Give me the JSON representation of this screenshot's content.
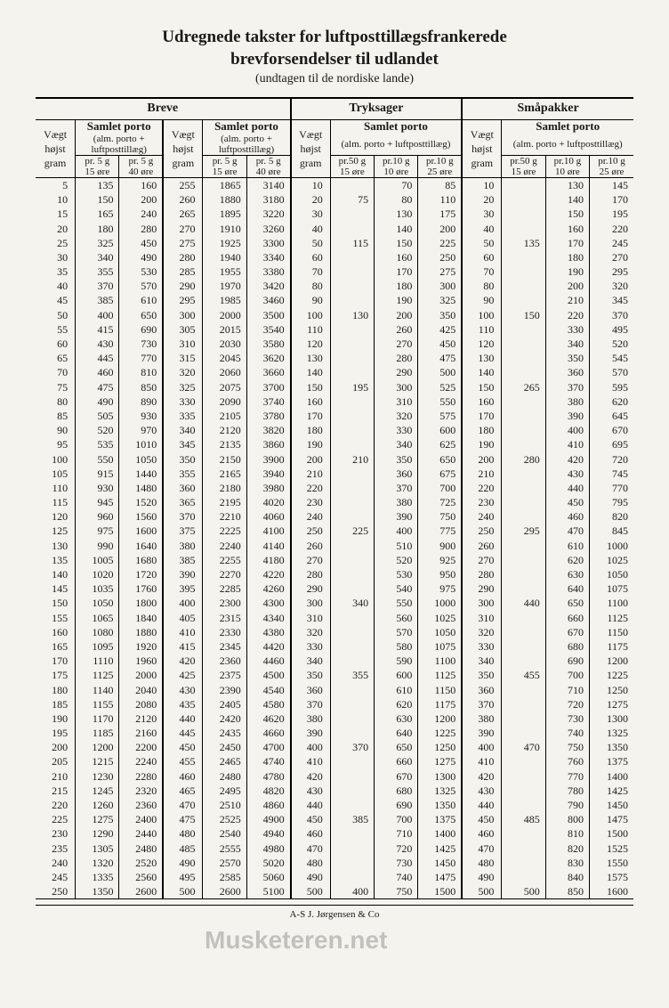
{
  "title_line1": "Udregnede takster for luftposttillægsfrankerede",
  "title_line2": "brevforsendelser til udlandet",
  "subtitle": "(undtagen til de nordiske lande)",
  "sections": {
    "breve": "Breve",
    "tryksager": "Tryksager",
    "smapakker": "Småpakker"
  },
  "col_weight": "Vægt højst gram",
  "samlet_porto": "Samlet porto",
  "paren": "(alm. porto + luftposttillæg)",
  "pr5_15": "pr. 5 g 15 øre",
  "pr5_40": "pr. 5 g 40 øre",
  "pr50_15": "pr. 50 g 15 øre",
  "pr10_10": "pr. 10 g 10 øre",
  "pr10_25": "pr. 10 g 25 øre",
  "footer": "A-S J. Jørgensen & Co",
  "watermark": "Musketeren.net",
  "rows": [
    {
      "b1": [
        5,
        135,
        160
      ],
      "b2": [
        255,
        1865,
        3140
      ],
      "t": [
        10,
        "",
        70,
        85
      ],
      "s": [
        10,
        "",
        130,
        145
      ]
    },
    {
      "b1": [
        10,
        150,
        200
      ],
      "b2": [
        260,
        1880,
        3180
      ],
      "t": [
        20,
        75,
        80,
        110
      ],
      "s": [
        20,
        "",
        140,
        170
      ]
    },
    {
      "b1": [
        15,
        165,
        240
      ],
      "b2": [
        265,
        1895,
        3220
      ],
      "t": [
        30,
        "",
        130,
        175
      ],
      "s": [
        30,
        "",
        150,
        195
      ]
    },
    {
      "b1": [
        20,
        180,
        280
      ],
      "b2": [
        270,
        1910,
        3260
      ],
      "t": [
        40,
        "",
        140,
        200
      ],
      "s": [
        40,
        "",
        160,
        220
      ]
    },
    {
      "b1": [
        25,
        325,
        450
      ],
      "b2": [
        275,
        1925,
        3300
      ],
      "t": [
        50,
        115,
        150,
        225
      ],
      "s": [
        50,
        135,
        170,
        245
      ]
    },
    {
      "b1": [
        30,
        340,
        490
      ],
      "b2": [
        280,
        1940,
        3340
      ],
      "t": [
        60,
        "",
        160,
        250
      ],
      "s": [
        60,
        "",
        180,
        270
      ]
    },
    {
      "b1": [
        35,
        355,
        530
      ],
      "b2": [
        285,
        1955,
        3380
      ],
      "t": [
        70,
        "",
        170,
        275
      ],
      "s": [
        70,
        "",
        190,
        295
      ]
    },
    {
      "b1": [
        40,
        370,
        570
      ],
      "b2": [
        290,
        1970,
        3420
      ],
      "t": [
        80,
        "",
        180,
        300
      ],
      "s": [
        80,
        "",
        200,
        320
      ]
    },
    {
      "b1": [
        45,
        385,
        610
      ],
      "b2": [
        295,
        1985,
        3460
      ],
      "t": [
        90,
        "",
        190,
        325
      ],
      "s": [
        90,
        "",
        210,
        345
      ]
    },
    {
      "b1": [
        50,
        400,
        650
      ],
      "b2": [
        300,
        2000,
        3500
      ],
      "t": [
        100,
        130,
        200,
        350
      ],
      "s": [
        100,
        150,
        220,
        370
      ]
    },
    {
      "b1": [
        55,
        415,
        690
      ],
      "b2": [
        305,
        2015,
        3540
      ],
      "t": [
        110,
        "",
        260,
        425
      ],
      "s": [
        110,
        "",
        330,
        495
      ]
    },
    {
      "b1": [
        60,
        430,
        730
      ],
      "b2": [
        310,
        2030,
        3580
      ],
      "t": [
        120,
        "",
        270,
        450
      ],
      "s": [
        120,
        "",
        340,
        520
      ]
    },
    {
      "b1": [
        65,
        445,
        770
      ],
      "b2": [
        315,
        2045,
        3620
      ],
      "t": [
        130,
        "",
        280,
        475
      ],
      "s": [
        130,
        "",
        350,
        545
      ]
    },
    {
      "b1": [
        70,
        460,
        810
      ],
      "b2": [
        320,
        2060,
        3660
      ],
      "t": [
        140,
        "",
        290,
        500
      ],
      "s": [
        140,
        "",
        360,
        570
      ]
    },
    {
      "b1": [
        75,
        475,
        850
      ],
      "b2": [
        325,
        2075,
        3700
      ],
      "t": [
        150,
        195,
        300,
        525
      ],
      "s": [
        150,
        265,
        370,
        595
      ]
    },
    {
      "b1": [
        80,
        490,
        890
      ],
      "b2": [
        330,
        2090,
        3740
      ],
      "t": [
        160,
        "",
        310,
        550
      ],
      "s": [
        160,
        "",
        380,
        620
      ]
    },
    {
      "b1": [
        85,
        505,
        930
      ],
      "b2": [
        335,
        2105,
        3780
      ],
      "t": [
        170,
        "",
        320,
        575
      ],
      "s": [
        170,
        "",
        390,
        645
      ]
    },
    {
      "b1": [
        90,
        520,
        970
      ],
      "b2": [
        340,
        2120,
        3820
      ],
      "t": [
        180,
        "",
        330,
        600
      ],
      "s": [
        180,
        "",
        400,
        670
      ]
    },
    {
      "b1": [
        95,
        535,
        1010
      ],
      "b2": [
        345,
        2135,
        3860
      ],
      "t": [
        190,
        "",
        340,
        625
      ],
      "s": [
        190,
        "",
        410,
        695
      ]
    },
    {
      "b1": [
        100,
        550,
        1050
      ],
      "b2": [
        350,
        2150,
        3900
      ],
      "t": [
        200,
        210,
        350,
        650
      ],
      "s": [
        200,
        280,
        420,
        720
      ]
    },
    {
      "b1": [
        105,
        915,
        1440
      ],
      "b2": [
        355,
        2165,
        3940
      ],
      "t": [
        210,
        "",
        360,
        675
      ],
      "s": [
        210,
        "",
        430,
        745
      ]
    },
    {
      "b1": [
        110,
        930,
        1480
      ],
      "b2": [
        360,
        2180,
        3980
      ],
      "t": [
        220,
        "",
        370,
        700
      ],
      "s": [
        220,
        "",
        440,
        770
      ]
    },
    {
      "b1": [
        115,
        945,
        1520
      ],
      "b2": [
        365,
        2195,
        4020
      ],
      "t": [
        230,
        "",
        380,
        725
      ],
      "s": [
        230,
        "",
        450,
        795
      ]
    },
    {
      "b1": [
        120,
        960,
        1560
      ],
      "b2": [
        370,
        2210,
        4060
      ],
      "t": [
        240,
        "",
        390,
        750
      ],
      "s": [
        240,
        "",
        460,
        820
      ]
    },
    {
      "b1": [
        125,
        975,
        1600
      ],
      "b2": [
        375,
        2225,
        4100
      ],
      "t": [
        250,
        225,
        400,
        775
      ],
      "s": [
        250,
        295,
        470,
        845
      ]
    },
    {
      "b1": [
        130,
        990,
        1640
      ],
      "b2": [
        380,
        2240,
        4140
      ],
      "t": [
        260,
        "",
        510,
        900
      ],
      "s": [
        260,
        "",
        610,
        1000
      ]
    },
    {
      "b1": [
        135,
        1005,
        1680
      ],
      "b2": [
        385,
        2255,
        4180
      ],
      "t": [
        270,
        "",
        520,
        925
      ],
      "s": [
        270,
        "",
        620,
        1025
      ]
    },
    {
      "b1": [
        140,
        1020,
        1720
      ],
      "b2": [
        390,
        2270,
        4220
      ],
      "t": [
        280,
        "",
        530,
        950
      ],
      "s": [
        280,
        "",
        630,
        1050
      ]
    },
    {
      "b1": [
        145,
        1035,
        1760
      ],
      "b2": [
        395,
        2285,
        4260
      ],
      "t": [
        290,
        "",
        540,
        975
      ],
      "s": [
        290,
        "",
        640,
        1075
      ]
    },
    {
      "b1": [
        150,
        1050,
        1800
      ],
      "b2": [
        400,
        2300,
        4300
      ],
      "t": [
        300,
        340,
        550,
        1000
      ],
      "s": [
        300,
        440,
        650,
        1100
      ]
    },
    {
      "b1": [
        155,
        1065,
        1840
      ],
      "b2": [
        405,
        2315,
        4340
      ],
      "t": [
        310,
        "",
        560,
        1025
      ],
      "s": [
        310,
        "",
        660,
        1125
      ]
    },
    {
      "b1": [
        160,
        1080,
        1880
      ],
      "b2": [
        410,
        2330,
        4380
      ],
      "t": [
        320,
        "",
        570,
        1050
      ],
      "s": [
        320,
        "",
        670,
        1150
      ]
    },
    {
      "b1": [
        165,
        1095,
        1920
      ],
      "b2": [
        415,
        2345,
        4420
      ],
      "t": [
        330,
        "",
        580,
        1075
      ],
      "s": [
        330,
        "",
        680,
        1175
      ]
    },
    {
      "b1": [
        170,
        1110,
        1960
      ],
      "b2": [
        420,
        2360,
        4460
      ],
      "t": [
        340,
        "",
        590,
        1100
      ],
      "s": [
        340,
        "",
        690,
        1200
      ]
    },
    {
      "b1": [
        175,
        1125,
        2000
      ],
      "b2": [
        425,
        2375,
        4500
      ],
      "t": [
        350,
        355,
        600,
        1125
      ],
      "s": [
        350,
        455,
        700,
        1225
      ]
    },
    {
      "b1": [
        180,
        1140,
        2040
      ],
      "b2": [
        430,
        2390,
        4540
      ],
      "t": [
        360,
        "",
        610,
        1150
      ],
      "s": [
        360,
        "",
        710,
        1250
      ]
    },
    {
      "b1": [
        185,
        1155,
        2080
      ],
      "b2": [
        435,
        2405,
        4580
      ],
      "t": [
        370,
        "",
        620,
        1175
      ],
      "s": [
        370,
        "",
        720,
        1275
      ]
    },
    {
      "b1": [
        190,
        1170,
        2120
      ],
      "b2": [
        440,
        2420,
        4620
      ],
      "t": [
        380,
        "",
        630,
        1200
      ],
      "s": [
        380,
        "",
        730,
        1300
      ]
    },
    {
      "b1": [
        195,
        1185,
        2160
      ],
      "b2": [
        445,
        2435,
        4660
      ],
      "t": [
        390,
        "",
        640,
        1225
      ],
      "s": [
        390,
        "",
        740,
        1325
      ]
    },
    {
      "b1": [
        200,
        1200,
        2200
      ],
      "b2": [
        450,
        2450,
        4700
      ],
      "t": [
        400,
        370,
        650,
        1250
      ],
      "s": [
        400,
        470,
        750,
        1350
      ]
    },
    {
      "b1": [
        205,
        1215,
        2240
      ],
      "b2": [
        455,
        2465,
        4740
      ],
      "t": [
        410,
        "",
        660,
        1275
      ],
      "s": [
        410,
        "",
        760,
        1375
      ]
    },
    {
      "b1": [
        210,
        1230,
        2280
      ],
      "b2": [
        460,
        2480,
        4780
      ],
      "t": [
        420,
        "",
        670,
        1300
      ],
      "s": [
        420,
        "",
        770,
        1400
      ]
    },
    {
      "b1": [
        215,
        1245,
        2320
      ],
      "b2": [
        465,
        2495,
        4820
      ],
      "t": [
        430,
        "",
        680,
        1325
      ],
      "s": [
        430,
        "",
        780,
        1425
      ]
    },
    {
      "b1": [
        220,
        1260,
        2360
      ],
      "b2": [
        470,
        2510,
        4860
      ],
      "t": [
        440,
        "",
        690,
        1350
      ],
      "s": [
        440,
        "",
        790,
        1450
      ]
    },
    {
      "b1": [
        225,
        1275,
        2400
      ],
      "b2": [
        475,
        2525,
        4900
      ],
      "t": [
        450,
        385,
        700,
        1375
      ],
      "s": [
        450,
        485,
        800,
        1475
      ]
    },
    {
      "b1": [
        230,
        1290,
        2440
      ],
      "b2": [
        480,
        2540,
        4940
      ],
      "t": [
        460,
        "",
        710,
        1400
      ],
      "s": [
        460,
        "",
        810,
        1500
      ]
    },
    {
      "b1": [
        235,
        1305,
        2480
      ],
      "b2": [
        485,
        2555,
        4980
      ],
      "t": [
        470,
        "",
        720,
        1425
      ],
      "s": [
        470,
        "",
        820,
        1525
      ]
    },
    {
      "b1": [
        240,
        1320,
        2520
      ],
      "b2": [
        490,
        2570,
        5020
      ],
      "t": [
        480,
        "",
        730,
        1450
      ],
      "s": [
        480,
        "",
        830,
        1550
      ]
    },
    {
      "b1": [
        245,
        1335,
        2560
      ],
      "b2": [
        495,
        2585,
        5060
      ],
      "t": [
        490,
        "",
        740,
        1475
      ],
      "s": [
        490,
        "",
        840,
        1575
      ]
    },
    {
      "b1": [
        250,
        1350,
        2600
      ],
      "b2": [
        500,
        2600,
        5100
      ],
      "t": [
        500,
        400,
        750,
        1500
      ],
      "s": [
        500,
        500,
        850,
        1600
      ]
    }
  ]
}
